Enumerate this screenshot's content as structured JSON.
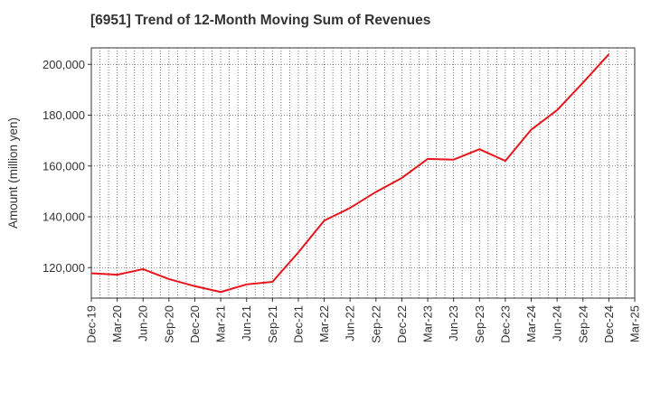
{
  "chart_data": {
    "type": "line",
    "title": "[6951]  Trend of 12-Month Moving Sum of Revenues",
    "ylabel": "Amount (million yen)",
    "xlabel": "",
    "x_ticks": [
      "Dec-19",
      "Mar-20",
      "Jun-20",
      "Sep-20",
      "Dec-20",
      "Mar-21",
      "Jun-21",
      "Sep-21",
      "Dec-21",
      "Mar-22",
      "Jun-22",
      "Sep-22",
      "Dec-22",
      "Mar-23",
      "Jun-23",
      "Sep-23",
      "Dec-23",
      "Mar-24",
      "Jun-24",
      "Sep-24",
      "Dec-24",
      "Mar-25"
    ],
    "y_ticks": [
      120000,
      140000,
      160000,
      180000,
      200000
    ],
    "y_tick_labels": [
      "120,000",
      "140,000",
      "160,000",
      "180,000",
      "200,000"
    ],
    "ylim": [
      108000,
      206500
    ],
    "grid": true,
    "series": [
      {
        "color": "#e8141c",
        "x": [
          "Dec-19",
          "Mar-20",
          "Jun-20",
          "Sep-20",
          "Dec-20",
          "Mar-21",
          "Jun-21",
          "Sep-21",
          "Dec-21",
          "Mar-22",
          "Jun-22",
          "Sep-22",
          "Dec-22",
          "Mar-23",
          "Jun-23",
          "Sep-23",
          "Dec-23",
          "Mar-24",
          "Jun-24",
          "Sep-24",
          "Dec-24"
        ],
        "values": [
          117800,
          117200,
          119400,
          115500,
          112700,
          110400,
          113400,
          114400,
          126000,
          138500,
          143500,
          149800,
          155300,
          162800,
          162500,
          166600,
          162000,
          174300,
          182000,
          192800,
          204000
        ]
      }
    ]
  }
}
